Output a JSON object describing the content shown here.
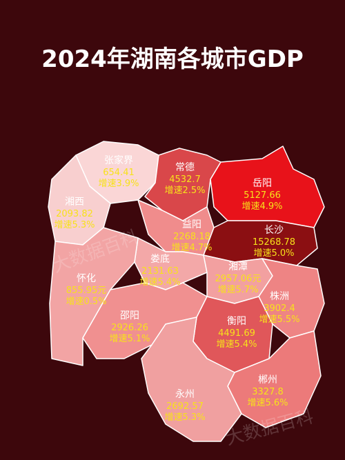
{
  "title": "2024年湖南各城市GDP",
  "watermark": "大数据百科",
  "regions": [
    {
      "name": "张家界",
      "gdp": "654.41",
      "growth": "增速3.9%"
    },
    {
      "name": "常德",
      "gdp": "4532.7",
      "growth": "增速2.5%"
    },
    {
      "name": "岳阳",
      "gdp": "5127.66",
      "growth": "增速4.9%"
    },
    {
      "name": "湘西",
      "gdp": "2093.82",
      "growth": "增速5.3%"
    },
    {
      "name": "益阳",
      "gdp": "2268.18",
      "growth": "增速4.7%"
    },
    {
      "name": "长沙",
      "gdp": "15268.78",
      "growth": "增速5.0%"
    },
    {
      "name": "娄底",
      "gdp": "2131.63",
      "growth": "增速5.4%"
    },
    {
      "name": "湘潭",
      "gdp": "2957.06元",
      "growth": "增速5.7%"
    },
    {
      "name": "怀化",
      "gdp": "855.95元",
      "growth": "增速0.5%"
    },
    {
      "name": "株洲",
      "gdp": "3902.4",
      "growth": "增速5.5%"
    },
    {
      "name": "邵阳",
      "gdp": "2926.26",
      "growth": "增速5.1%"
    },
    {
      "name": "衡阳",
      "gdp": "4491.69",
      "growth": "增速5.4%"
    },
    {
      "name": "郴州",
      "gdp": "3327.8",
      "growth": "增速5.6%"
    },
    {
      "name": "永州",
      "gdp": "2692.57",
      "growth": "增速5.3%"
    }
  ]
}
